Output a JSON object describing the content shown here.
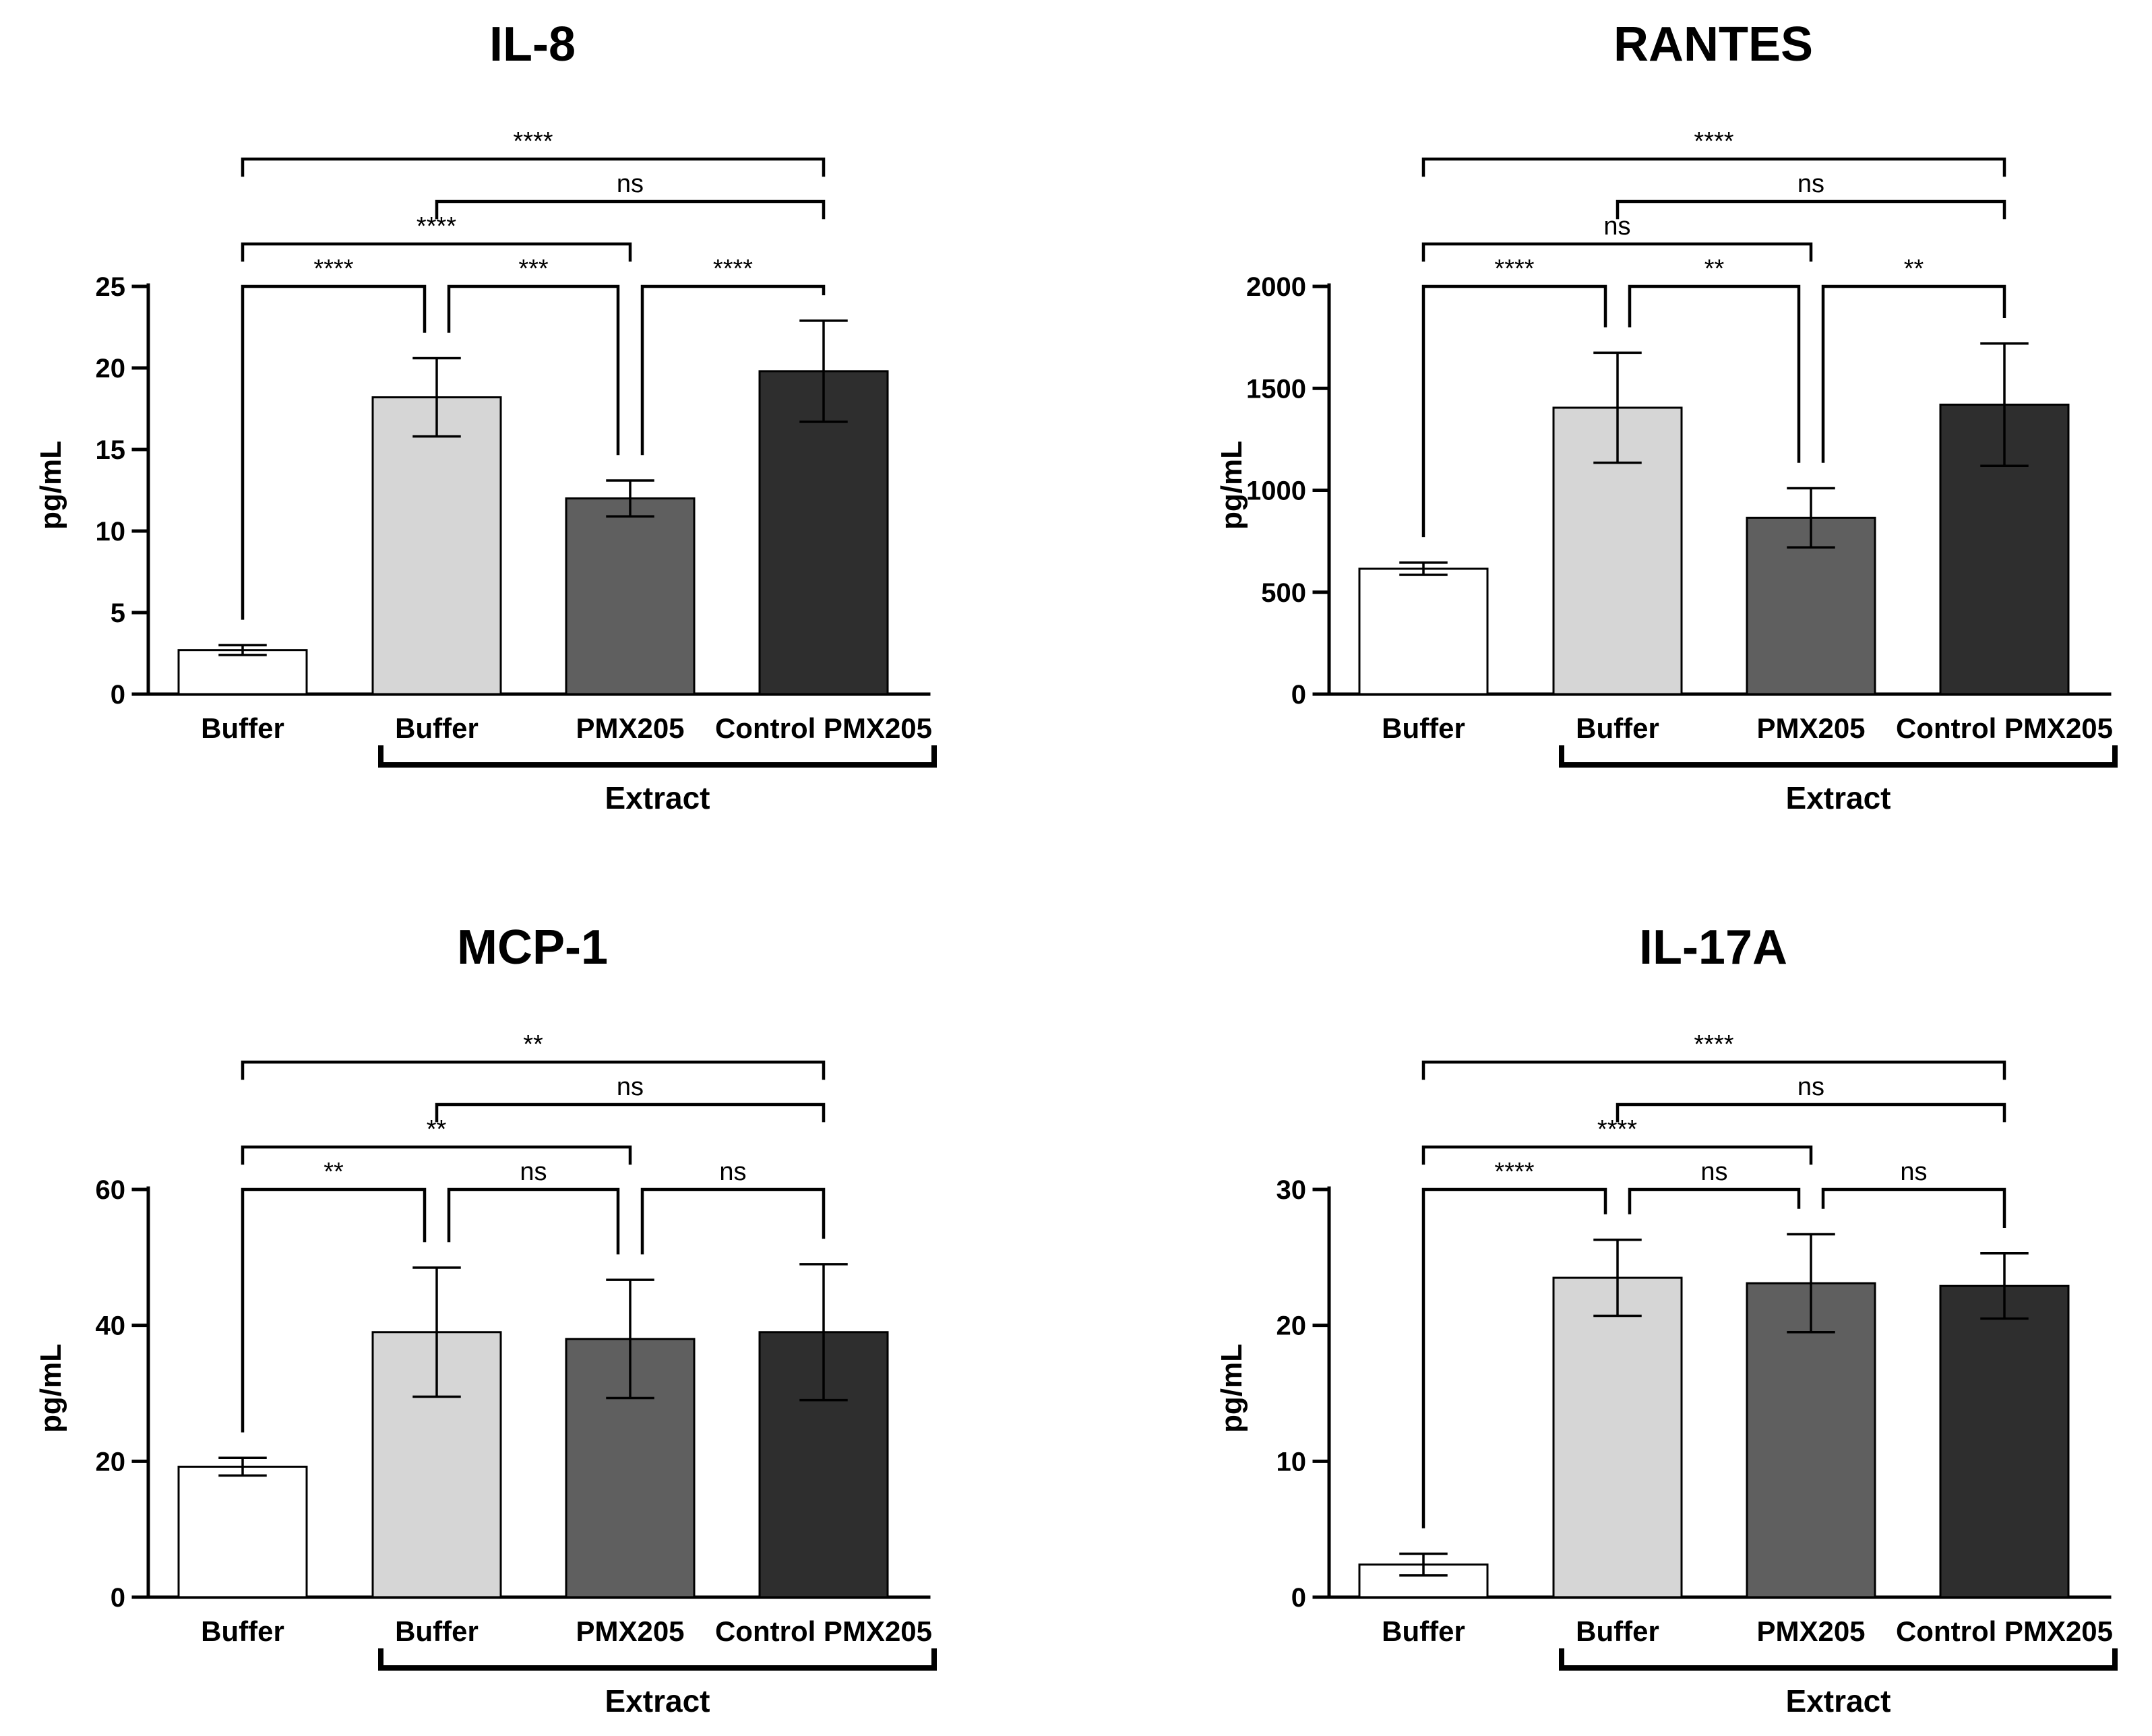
{
  "colors": {
    "Buffer": "#ffffff",
    "Extract Buffer": "#d6d6d6",
    "Extract PMX205": "#5f5f5f",
    "Extract Control PMX205": "#2e2e2e",
    "outline": "#000000"
  },
  "chart_data": [
    {
      "type": "bar",
      "title": "IL-8",
      "ylabel": "pg/mL",
      "ylim": [
        0,
        25
      ],
      "yticks": [
        0,
        5,
        10,
        15,
        20,
        25
      ],
      "ytick_labels": [
        "0",
        "5",
        "10",
        "15",
        "20",
        "25"
      ],
      "categories": [
        "Buffer",
        "Buffer",
        "PMX205",
        "Control PMX205"
      ],
      "group_label": "Extract",
      "values": [
        2.7,
        18.2,
        12.0,
        19.8
      ],
      "errors": [
        0.3,
        2.4,
        1.1,
        3.1
      ],
      "comparisons": [
        {
          "a": 0,
          "b": 1,
          "label": "****"
        },
        {
          "a": 1,
          "b": 2,
          "label": "***"
        },
        {
          "a": 2,
          "b": 3,
          "label": "****"
        },
        {
          "a": 0,
          "b": 2,
          "label": "****"
        },
        {
          "a": 1,
          "b": 3,
          "label": "ns"
        },
        {
          "a": 0,
          "b": 3,
          "label": "****"
        }
      ]
    },
    {
      "type": "bar",
      "title": "RANTES",
      "ylabel": "pg/mL",
      "ylim": [
        0,
        2000
      ],
      "yticks": [
        0,
        500,
        1000,
        1500,
        2000
      ],
      "ytick_labels": [
        "0",
        "500",
        "1000",
        "1500",
        "2000"
      ],
      "categories": [
        "Buffer",
        "Buffer",
        "PMX205",
        "Control PMX205"
      ],
      "group_label": "Extract",
      "values": [
        615,
        1405,
        865,
        1420
      ],
      "errors": [
        30,
        270,
        145,
        300
      ],
      "comparisons": [
        {
          "a": 0,
          "b": 1,
          "label": "****"
        },
        {
          "a": 1,
          "b": 2,
          "label": "**"
        },
        {
          "a": 2,
          "b": 3,
          "label": "**"
        },
        {
          "a": 0,
          "b": 2,
          "label": "ns"
        },
        {
          "a": 1,
          "b": 3,
          "label": "ns"
        },
        {
          "a": 0,
          "b": 3,
          "label": "****"
        }
      ]
    },
    {
      "type": "bar",
      "title": "MCP-1",
      "ylabel": "pg/mL",
      "ylim": [
        0,
        60
      ],
      "yticks": [
        0,
        20,
        40,
        60
      ],
      "ytick_labels": [
        "0",
        "20",
        "40",
        "60"
      ],
      "categories": [
        "Buffer",
        "Buffer",
        "PMX205",
        "Control PMX205"
      ],
      "group_label": "Extract",
      "values": [
        19.2,
        39.0,
        38.0,
        39.0
      ],
      "errors": [
        1.3,
        9.5,
        8.7,
        10.0
      ],
      "comparisons": [
        {
          "a": 0,
          "b": 1,
          "label": "**"
        },
        {
          "a": 1,
          "b": 2,
          "label": "ns"
        },
        {
          "a": 2,
          "b": 3,
          "label": "ns"
        },
        {
          "a": 0,
          "b": 2,
          "label": "**"
        },
        {
          "a": 1,
          "b": 3,
          "label": "ns"
        },
        {
          "a": 0,
          "b": 3,
          "label": "**"
        }
      ]
    },
    {
      "type": "bar",
      "title": "IL-17A",
      "ylabel": "pg/mL",
      "ylim": [
        0,
        30
      ],
      "yticks": [
        0,
        10,
        20,
        30
      ],
      "ytick_labels": [
        "0",
        "10",
        "20",
        "30"
      ],
      "categories": [
        "Buffer",
        "Buffer",
        "PMX205",
        "Control PMX205"
      ],
      "group_label": "Extract",
      "values": [
        2.4,
        23.5,
        23.1,
        22.9
      ],
      "errors": [
        0.8,
        2.8,
        3.6,
        2.4
      ],
      "comparisons": [
        {
          "a": 0,
          "b": 1,
          "label": "****"
        },
        {
          "a": 1,
          "b": 2,
          "label": "ns"
        },
        {
          "a": 2,
          "b": 3,
          "label": "ns"
        },
        {
          "a": 0,
          "b": 2,
          "label": "****"
        },
        {
          "a": 1,
          "b": 3,
          "label": "ns"
        },
        {
          "a": 0,
          "b": 3,
          "label": "****"
        }
      ]
    }
  ]
}
